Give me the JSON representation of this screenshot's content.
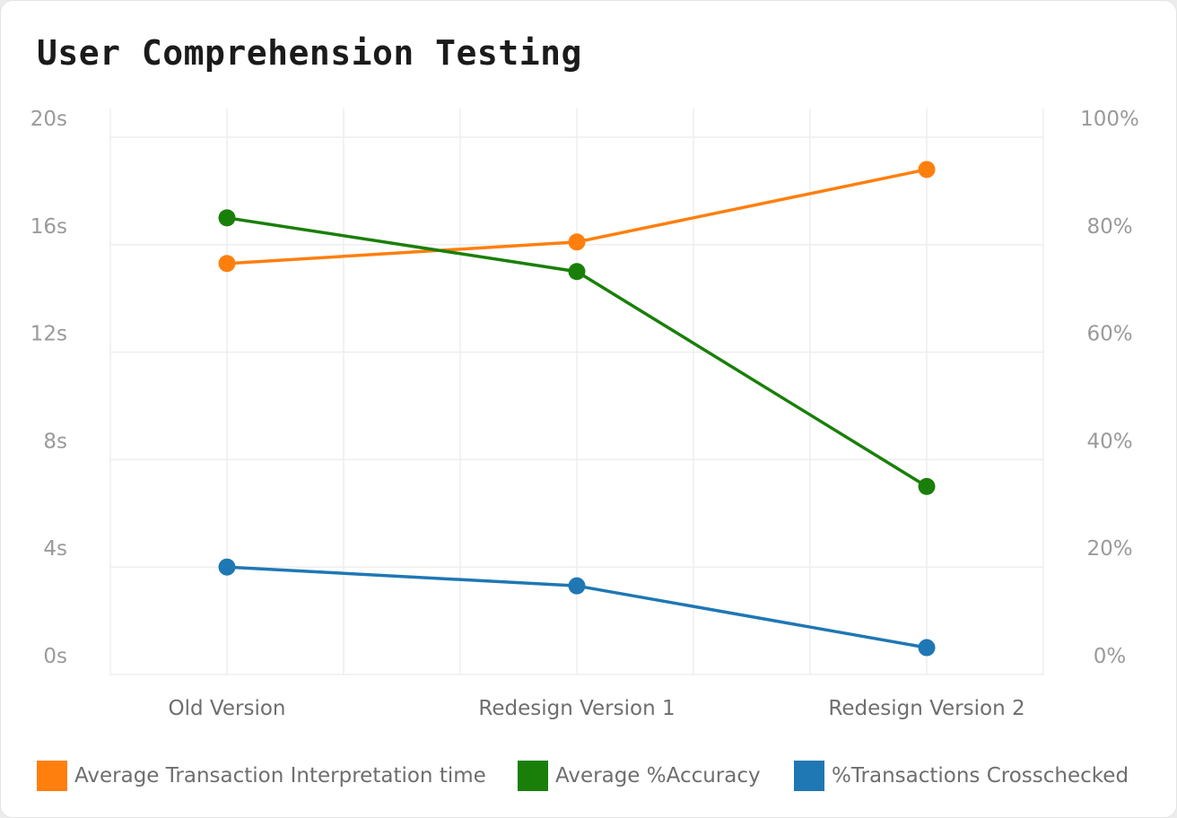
{
  "chart_data": {
    "type": "line",
    "title": "User Comprehension Testing",
    "categories": [
      "Old Version",
      "Redesign Version 1",
      "Redesign Version 2"
    ],
    "y_left": {
      "ticks": [
        "0s",
        "4s",
        "8s",
        "12s",
        "16s",
        "20s"
      ],
      "range": [
        0,
        20
      ]
    },
    "y_right": {
      "ticks": [
        "0%",
        "20%",
        "40%",
        "60%",
        "80%",
        "100%"
      ],
      "range": [
        0,
        100
      ]
    },
    "series": [
      {
        "name": "Average Transaction Interpretation time",
        "axis": "left",
        "color": "#ff7f0e",
        "values": [
          15.3,
          16.1,
          18.8
        ]
      },
      {
        "name": "Average %Accuracy",
        "axis": "right",
        "color": "#1a7f08",
        "values": [
          85,
          75,
          35
        ]
      },
      {
        "name": "%Transactions Crosschecked",
        "axis": "right",
        "color": "#1f77b4",
        "values": [
          20,
          16.5,
          5
        ]
      }
    ],
    "grid": true,
    "legend_position": "bottom"
  }
}
